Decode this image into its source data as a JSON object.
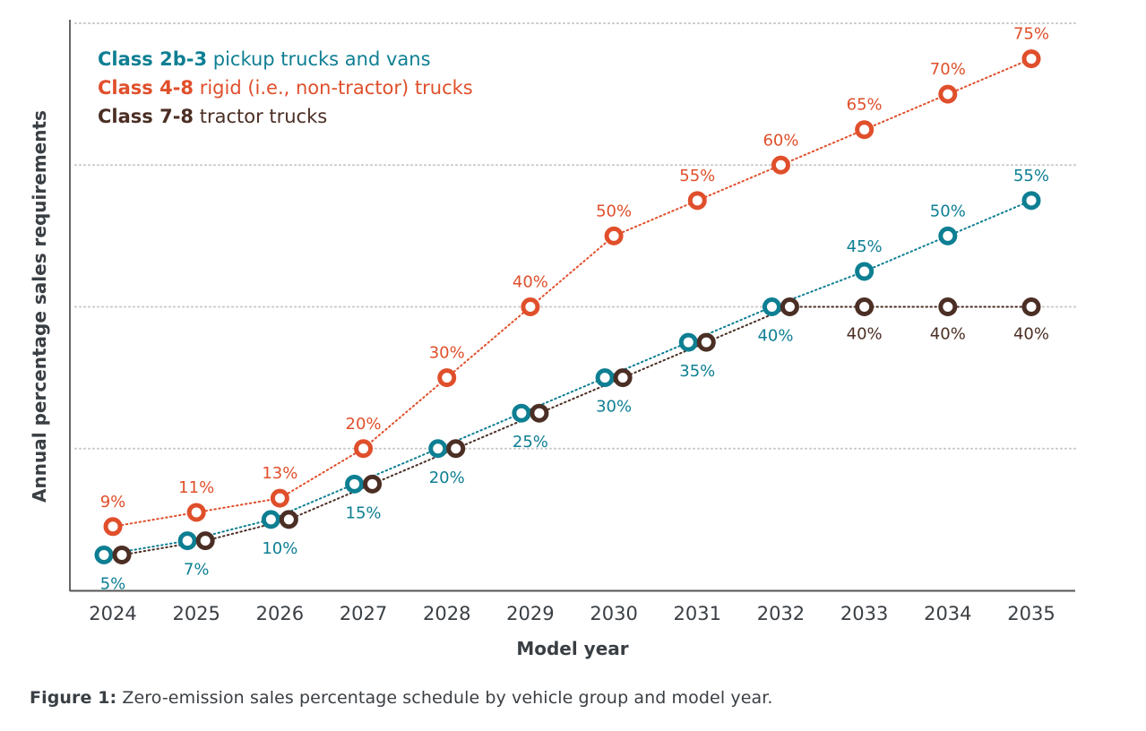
{
  "chart_data": {
    "type": "line",
    "xlabel": "Model year",
    "ylabel": "Annual percentage sales requirements",
    "x": [
      2024,
      2025,
      2026,
      2027,
      2028,
      2029,
      2030,
      2031,
      2032,
      2033,
      2034,
      2035
    ],
    "ylim": [
      0,
      80
    ],
    "gridlines_y": [
      20,
      40,
      60,
      80
    ],
    "grid": true,
    "legend_position": "top-left",
    "series": [
      {
        "name_bold": "Class 2b-3",
        "name_rest": " pickup trucks and vans",
        "color": "#0e7f93",
        "values": [
          5,
          7,
          10,
          15,
          20,
          25,
          30,
          35,
          40,
          45,
          50,
          55
        ],
        "labels": [
          "5%",
          "7%",
          "10%",
          "15%",
          "20%",
          "25%",
          "30%",
          "35%",
          "40%",
          "45%",
          "50%",
          "55%"
        ]
      },
      {
        "name_bold": "Class 4-8",
        "name_rest": " rigid (i.e., non-tractor) trucks",
        "color": "#e04f2b",
        "values": [
          9,
          11,
          13,
          20,
          30,
          40,
          50,
          55,
          60,
          65,
          70,
          75
        ],
        "labels": [
          "9%",
          "11%",
          "13%",
          "20%",
          "30%",
          "40%",
          "50%",
          "55%",
          "60%",
          "65%",
          "70%",
          "75%"
        ]
      },
      {
        "name_bold": "Class 7-8",
        "name_rest": " tractor trucks",
        "color": "#4b2e24",
        "values": [
          5,
          7,
          10,
          15,
          20,
          25,
          30,
          35,
          40,
          40,
          40,
          40
        ],
        "labels": [
          "",
          "",
          "",
          "",
          "",
          "",
          "",
          "",
          "",
          "40%",
          "40%",
          "40%"
        ]
      }
    ]
  },
  "caption": {
    "bold": "Figure 1:",
    "text": " Zero-emission sales percentage schedule by vehicle group and model year."
  }
}
